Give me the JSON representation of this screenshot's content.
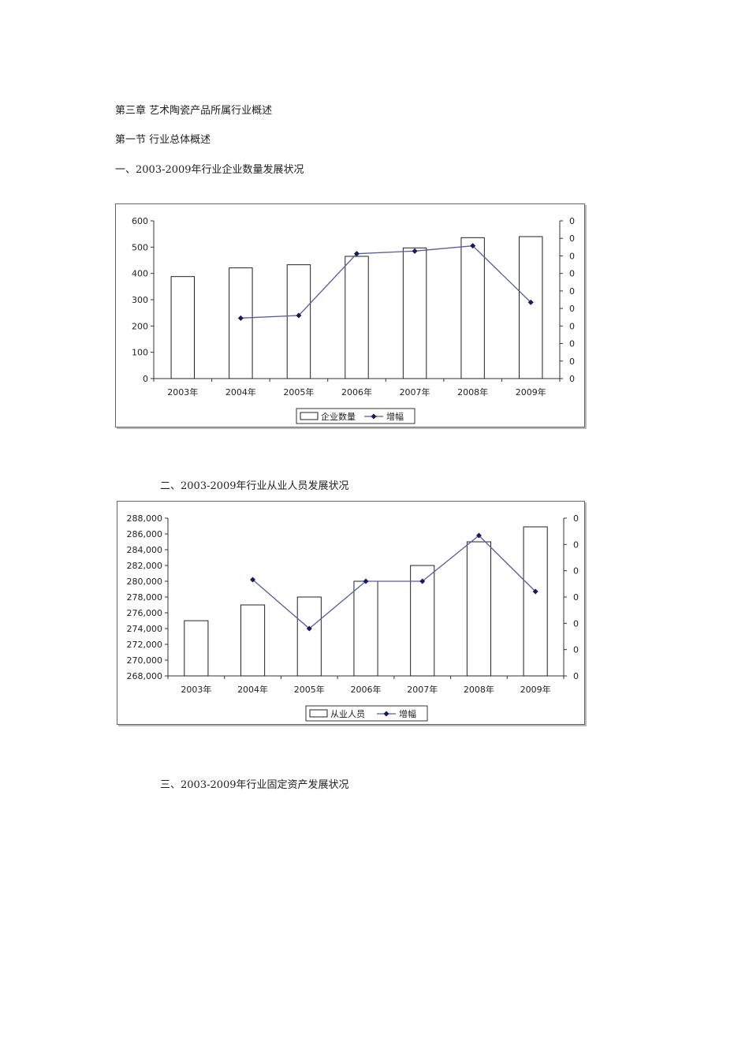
{
  "headings": {
    "chapter": "第三章 艺术陶瓷产品所属行业概述",
    "section": "第一节 行业总体概述",
    "h1": "一、2003-2009年行业企业数量发展状况",
    "h2": "二、2003-2009年行业从业人员发展状况",
    "h3": "三、2003-2009年行业固定资产发展状况"
  },
  "chart_data": [
    {
      "type": "bar",
      "categories": [
        "2003年",
        "2004年",
        "2005年",
        "2006年",
        "2007年",
        "2008年",
        "2009年"
      ],
      "series": [
        {
          "name": "企业数量",
          "type": "bar",
          "values": [
            388,
            421,
            433,
            465,
            497,
            536,
            540
          ]
        },
        {
          "name": "增幅",
          "type": "line",
          "axis": "right",
          "values": [
            null,
            230,
            240,
            475,
            485,
            505,
            290
          ]
        }
      ],
      "ylim": [
        0,
        600
      ],
      "yticks": [
        "600",
        "500",
        "400",
        "300",
        "200",
        "100",
        "0"
      ],
      "right_ticks": [
        "0",
        "0",
        "0",
        "0",
        "0",
        "0",
        "0",
        "0",
        "0",
        "0"
      ],
      "legend": [
        "企业数量",
        "增幅"
      ],
      "legend_position": "bottom"
    },
    {
      "type": "bar",
      "categories": [
        "2003年",
        "2004年",
        "2005年",
        "2006年",
        "2007年",
        "2008年",
        "2009年"
      ],
      "series": [
        {
          "name": "从业人员",
          "type": "bar",
          "values": [
            275000,
            277000,
            278000,
            280000,
            282000,
            285000,
            286900
          ]
        },
        {
          "name": "增幅",
          "type": "line",
          "axis": "right",
          "values": [
            null,
            280200,
            274000,
            280000,
            280000,
            285800,
            278700
          ]
        }
      ],
      "ylim": [
        268000,
        288000
      ],
      "yticks": [
        "288,000",
        "286,000",
        "284,000",
        "282,000",
        "280,000",
        "278,000",
        "276,000",
        "274,000",
        "272,000",
        "270,000",
        "268,000"
      ],
      "right_ticks": [
        "0",
        "0",
        "0",
        "0",
        "0",
        "0",
        "0"
      ],
      "legend": [
        "从业人员",
        "增幅"
      ],
      "legend_position": "bottom"
    }
  ]
}
